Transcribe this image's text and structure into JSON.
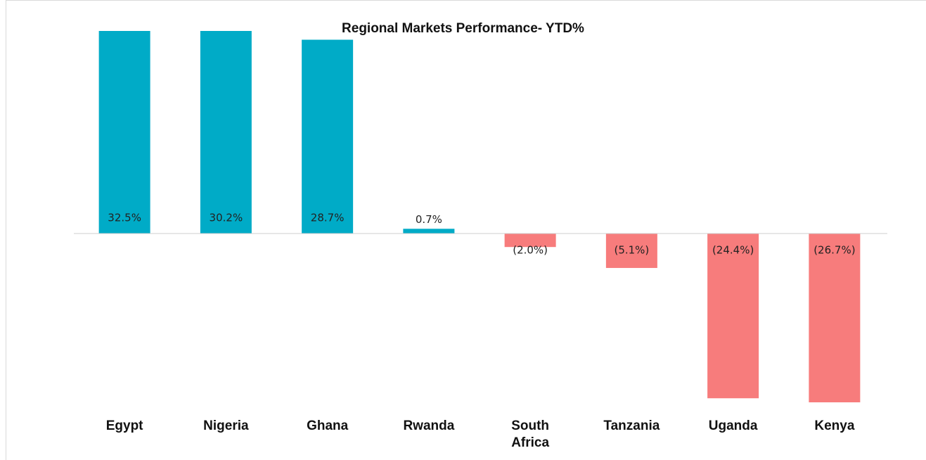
{
  "chart_data": {
    "type": "bar",
    "title": "Regional Markets Performance- YTD%",
    "categories": [
      "Egypt",
      "Nigeria",
      "Ghana",
      "Rwanda",
      "South Africa",
      "Tanzania",
      "Uganda",
      "Kenya"
    ],
    "values": [
      32.5,
      30.2,
      28.7,
      0.7,
      -2.0,
      -5.1,
      -24.4,
      -26.7
    ],
    "value_labels": [
      "32.5%",
      "30.2%",
      "28.7%",
      "0.7%",
      "(2.0%)",
      "(5.1%)",
      "(24.4%)",
      "(26.7%)"
    ],
    "positive_color": "#00abc7",
    "negative_color": "#f77c7c",
    "ylim": [
      -25,
      30
    ],
    "grid": false
  }
}
